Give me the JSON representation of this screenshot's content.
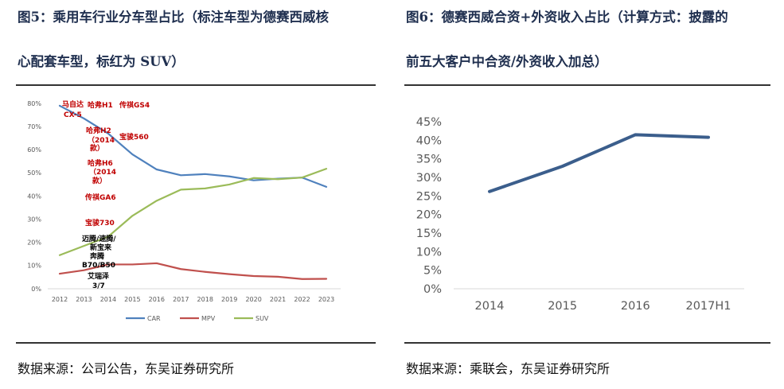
{
  "left": {
    "title_line1": "图5：乘用车行业分车型占比（标注车型为德赛西威核",
    "title_line2": "心配套车型，标红为 SUV）",
    "source": "数据来源：公司公告，东吴证券研究所"
  },
  "right": {
    "title_line1": "图6：德赛西威合资+外资收入占比（计算方式：披露的",
    "title_line2": "前五大客户中合资/外资收入加总）",
    "source": "数据来源：乘联会，东吴证券研究所"
  },
  "chart_data": [
    {
      "type": "line",
      "categories": [
        "2012",
        "2013",
        "2014",
        "2015",
        "2016",
        "2017",
        "2018",
        "2019",
        "2020",
        "2021",
        "2022",
        "2023"
      ],
      "series": [
        {
          "name": "CAR",
          "color": "#4f81bd",
          "values": [
            79,
            73.5,
            67,
            58,
            51.5,
            49,
            49.5,
            48.5,
            46.8,
            47.5,
            48,
            44
          ]
        },
        {
          "name": "MPV",
          "color": "#c0504d",
          "values": [
            6.5,
            8,
            10.5,
            10.5,
            11,
            8.5,
            7.3,
            6.3,
            5.5,
            5.2,
            4.2,
            4.3
          ]
        },
        {
          "name": "SUV",
          "color": "#9bbb59",
          "values": [
            14.5,
            18.5,
            22.5,
            31.5,
            38,
            42.8,
            43.3,
            45,
            47.8,
            47.3,
            48,
            51.8
          ]
        }
      ],
      "yticks": [
        "0%",
        "10%",
        "20%",
        "30%",
        "40%",
        "50%",
        "60%",
        "70%",
        "80%"
      ],
      "ylim": [
        0,
        80
      ],
      "legend": "bottom",
      "annotations": [
        {
          "text": "马自达",
          "color": "#c00000"
        },
        {
          "text": "CX-5",
          "color": "#c00000"
        },
        {
          "text": "哈弗H1",
          "color": "#c00000"
        },
        {
          "text": "传祺GS4",
          "color": "#c00000"
        },
        {
          "text": "哈弗H2",
          "color": "#c00000"
        },
        {
          "text": "（2014",
          "color": "#c00000"
        },
        {
          "text": "款）",
          "color": "#c00000"
        },
        {
          "text": "宝骏560",
          "color": "#c00000"
        },
        {
          "text": "哈弗H6",
          "color": "#c00000"
        },
        {
          "text": "（2014",
          "color": "#c00000"
        },
        {
          "text": "款）",
          "color": "#c00000"
        },
        {
          "text": "传祺GA6",
          "color": "#c00000"
        },
        {
          "text": "宝骏730",
          "color": "#c00000"
        },
        {
          "text": "迈腾/速腾/",
          "color": "#000000"
        },
        {
          "text": "新宝来",
          "color": "#000000"
        },
        {
          "text": "奔腾",
          "color": "#000000"
        },
        {
          "text": "B70/B50",
          "color": "#000000"
        },
        {
          "text": "艾瑞泽",
          "color": "#000000"
        },
        {
          "text": "3/7",
          "color": "#000000"
        }
      ]
    },
    {
      "type": "line",
      "categories": [
        "2014",
        "2015",
        "2016",
        "2017H1"
      ],
      "series": [
        {
          "name": "合资+外资收入占比",
          "color": "#3b5e8c",
          "values": [
            26.2,
            33,
            41.5,
            40.8
          ]
        }
      ],
      "yticks": [
        "0%",
        "5%",
        "10%",
        "15%",
        "20%",
        "25%",
        "30%",
        "35%",
        "40%",
        "45%"
      ],
      "ylim": [
        0,
        45
      ]
    }
  ]
}
